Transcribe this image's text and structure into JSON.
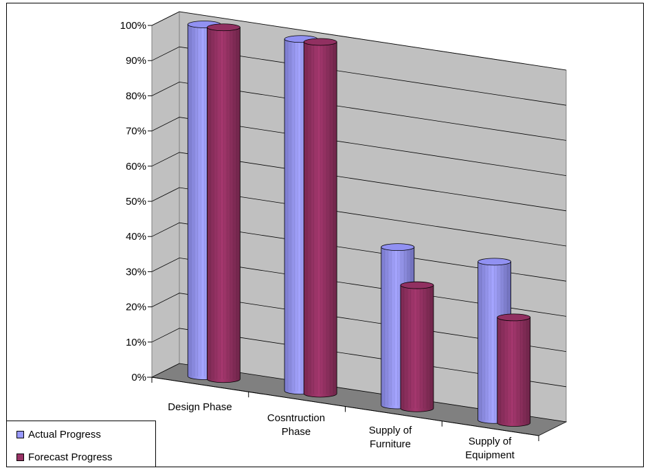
{
  "chart_data": {
    "type": "bar",
    "categories": [
      "Design Phase",
      "Cosntruction Phase",
      "Supply of Furniture",
      "Supply of Equipment"
    ],
    "category_lines": [
      [
        "Design Phase"
      ],
      [
        "Cosntruction",
        "Phase"
      ],
      [
        "Supply of",
        "Furniture"
      ],
      [
        "Supply of",
        "Equipment"
      ]
    ],
    "series": [
      {
        "name": "Actual Progress",
        "values": [
          100,
          100,
          45,
          45
        ],
        "color": "#9999ff"
      },
      {
        "name": "Forecast Progress",
        "values": [
          100,
          100,
          35,
          30
        ],
        "color": "#993366"
      }
    ],
    "yticks": [
      "0%",
      "10%",
      "20%",
      "30%",
      "40%",
      "50%",
      "60%",
      "70%",
      "80%",
      "90%",
      "100%"
    ],
    "ylim": [
      0,
      100
    ],
    "grid": true,
    "legend_position": "bottom-left",
    "style": "3d-cylinder"
  }
}
